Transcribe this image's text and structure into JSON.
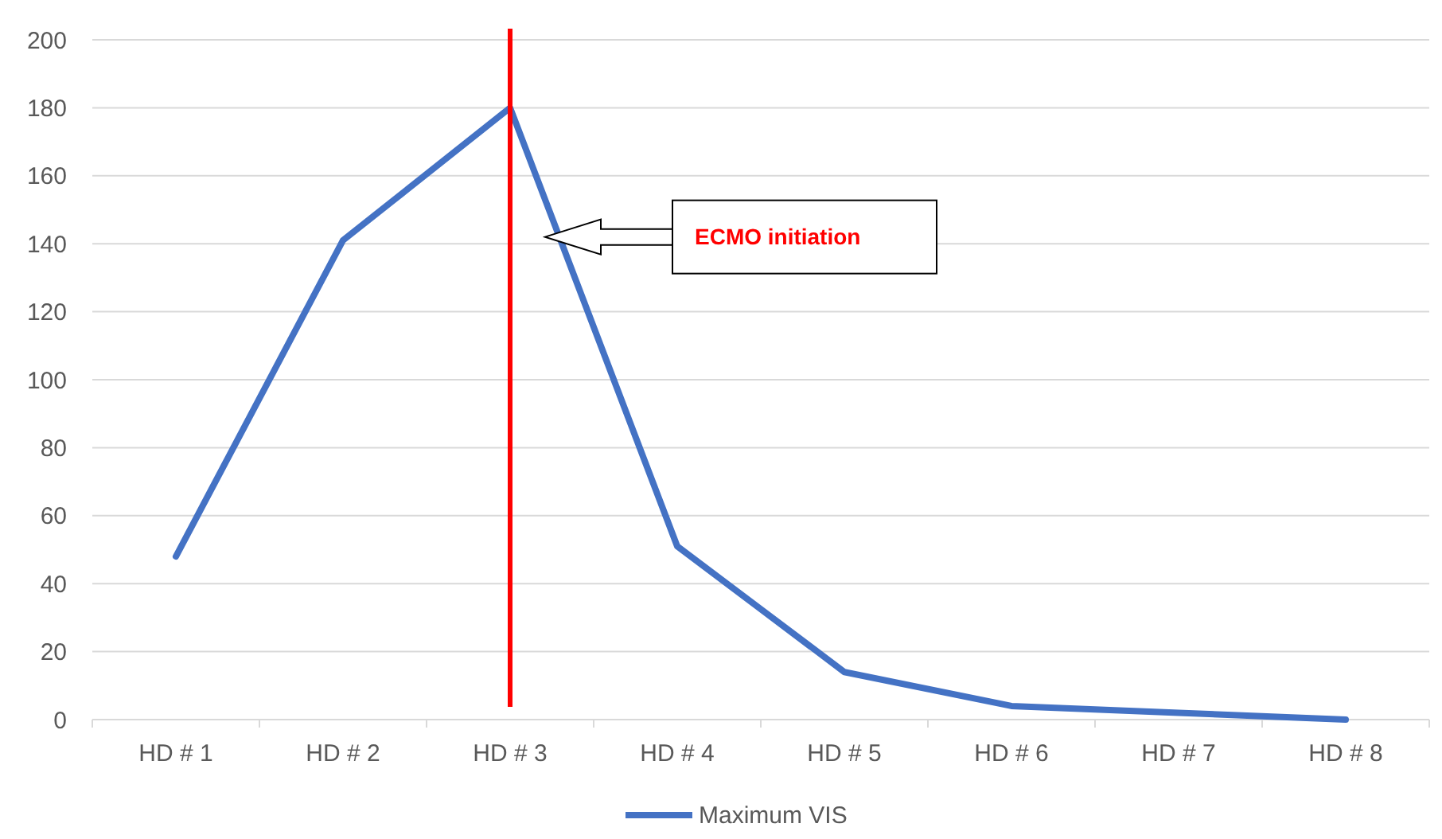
{
  "chart_data": {
    "type": "line",
    "categories": [
      "HD # 1",
      "HD # 2",
      "HD # 3",
      "HD # 4",
      "HD # 5",
      "HD # 6",
      "HD # 7",
      "HD # 8"
    ],
    "series": [
      {
        "name": "Maximum VIS",
        "color": "#4472c4",
        "values": [
          48,
          141,
          180,
          51,
          14,
          4,
          2,
          0
        ]
      }
    ],
    "ylim": [
      0,
      200
    ],
    "yticks": [
      0,
      20,
      40,
      60,
      80,
      100,
      120,
      140,
      160,
      180,
      200
    ],
    "grid": "y",
    "legend": "bottom",
    "marker": "none",
    "line_style": "solid",
    "ref_lines": [
      {
        "axis": "x",
        "value": "HD # 3",
        "color": "#ff0000"
      }
    ],
    "annotations": [
      "ECMO initiation"
    ]
  }
}
